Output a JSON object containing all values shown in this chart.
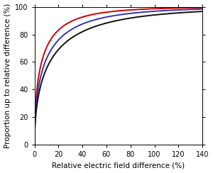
{
  "title": "",
  "xlabel": "Relative electric field difference (%)",
  "ylabel": "Proportion up to relative difference (%)",
  "xlim": [
    0,
    140
  ],
  "ylim": [
    0,
    100
  ],
  "xticks": [
    0,
    20,
    40,
    60,
    80,
    100,
    120,
    140
  ],
  "yticks": [
    0,
    20,
    40,
    60,
    80,
    100
  ],
  "curves": [
    {
      "color": "#cc0000",
      "scale": 7.0,
      "shape": 0.55
    },
    {
      "color": "#3333bb",
      "scale": 10.5,
      "shape": 0.55
    },
    {
      "color": "#111111",
      "scale": 15.0,
      "shape": 0.55
    }
  ],
  "xlabel_fontsize": 7.5,
  "ylabel_fontsize": 7.5,
  "tick_fontsize": 7,
  "linewidth": 1.4,
  "background_color": "#ffffff"
}
